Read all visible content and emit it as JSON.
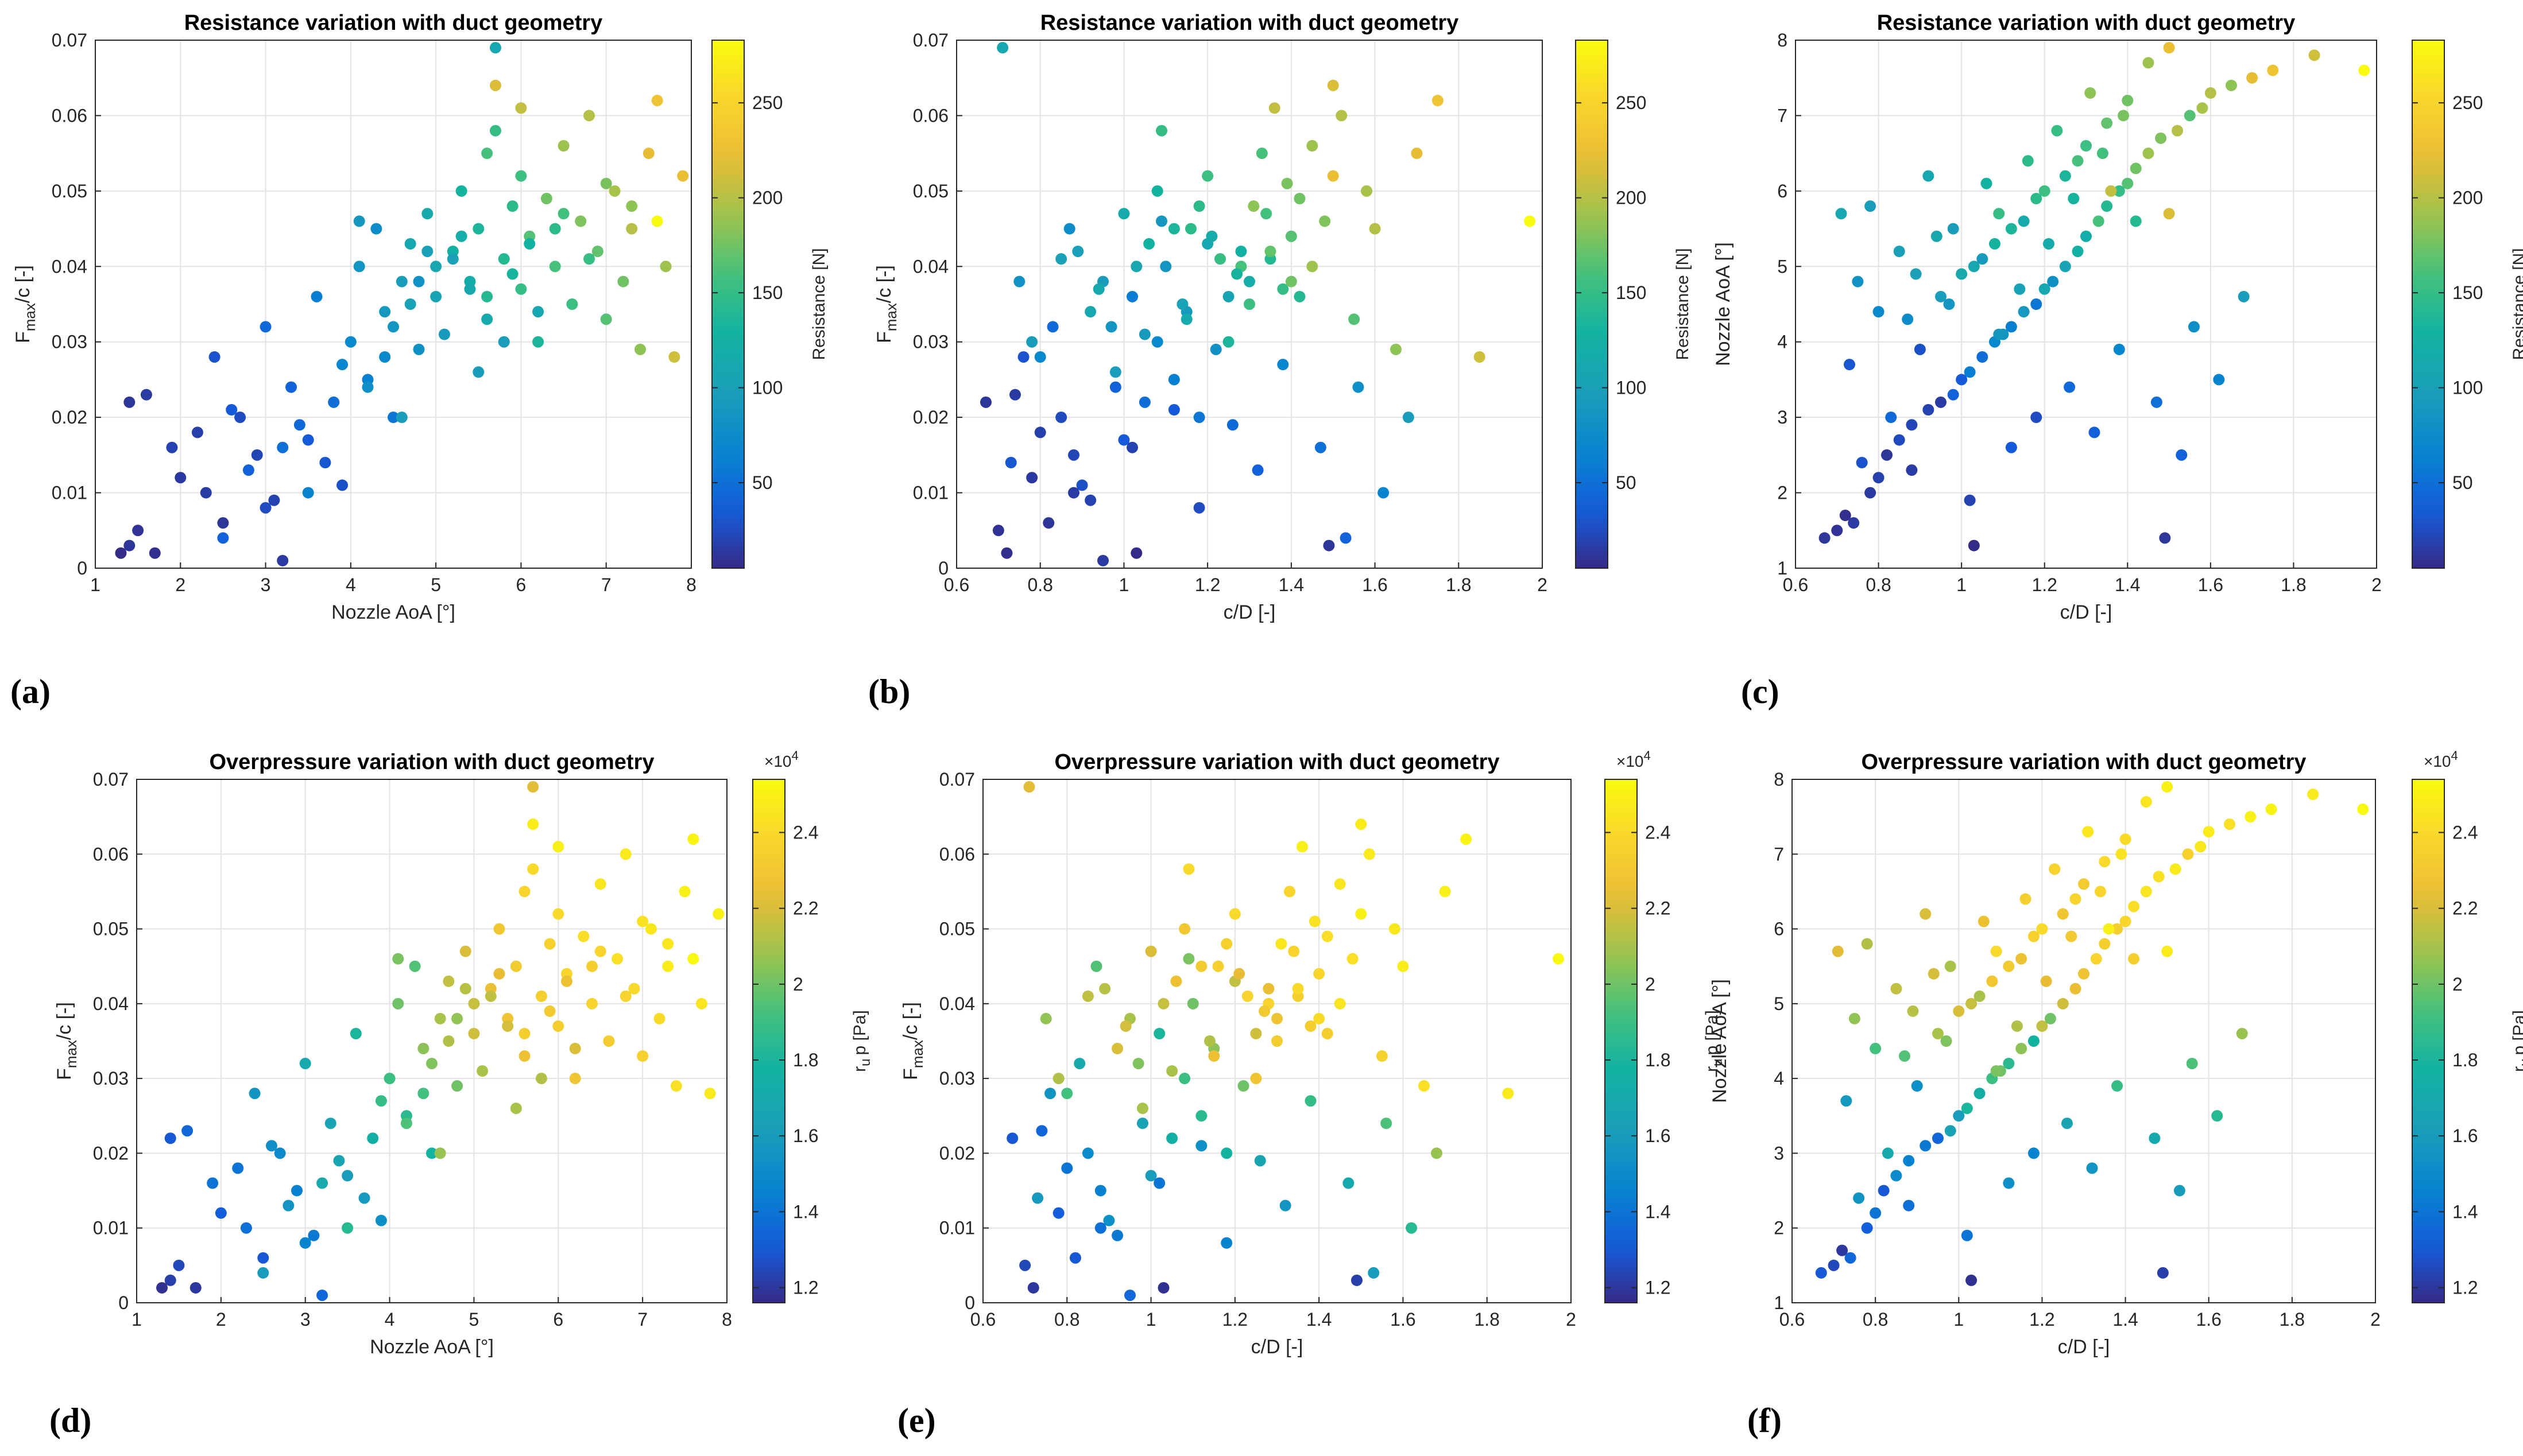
{
  "chart_data": [
    {
      "id": "a",
      "type": "scatter",
      "panel_label": "(a)",
      "title": "Resistance variation with duct geometry",
      "xlabel": "Nozzle AoA [°]",
      "ylabel_main": "F",
      "ylabel_sub": "max",
      "ylabel_rest": "/c [-]",
      "xlim": [
        1,
        8
      ],
      "ylim": [
        0,
        0.07
      ],
      "xticks": [
        1,
        2,
        3,
        4,
        5,
        6,
        7,
        8
      ],
      "yticks": [
        0,
        0.01,
        0.02,
        0.03,
        0.04,
        0.05,
        0.06,
        0.07
      ],
      "xtick_labels": [
        "1",
        "2",
        "3",
        "4",
        "5",
        "6",
        "7",
        "8"
      ],
      "ytick_labels": [
        "0",
        "0.01",
        "0.02",
        "0.03",
        "0.04",
        "0.05",
        "0.06",
        "0.07"
      ],
      "x_var": "aoa",
      "y_var": "fmax",
      "color_var": "res",
      "colorbar": {
        "label": "Resistance [N]",
        "range": [
          5,
          283
        ],
        "ticks": [
          50,
          100,
          150,
          200,
          250
        ],
        "tick_labels": [
          "50",
          "100",
          "150",
          "200",
          "250"
        ],
        "multiplier": ""
      }
    },
    {
      "id": "b",
      "type": "scatter",
      "panel_label": "(b)",
      "title": "Resistance variation with duct geometry",
      "xlabel": "c/D [-]",
      "ylabel_main": "F",
      "ylabel_sub": "max",
      "ylabel_rest": "/c [-]",
      "xlim": [
        0.6,
        2
      ],
      "ylim": [
        0,
        0.07
      ],
      "xticks": [
        0.6,
        0.8,
        1,
        1.2,
        1.4,
        1.6,
        1.8,
        2
      ],
      "yticks": [
        0,
        0.01,
        0.02,
        0.03,
        0.04,
        0.05,
        0.06,
        0.07
      ],
      "xtick_labels": [
        "0.6",
        "0.8",
        "1",
        "1.2",
        "1.4",
        "1.6",
        "1.8",
        "2"
      ],
      "ytick_labels": [
        "0",
        "0.01",
        "0.02",
        "0.03",
        "0.04",
        "0.05",
        "0.06",
        "0.07"
      ],
      "x_var": "cd",
      "y_var": "fmax",
      "color_var": "res",
      "colorbar": {
        "label": "Resistance [N]",
        "range": [
          5,
          283
        ],
        "ticks": [
          50,
          100,
          150,
          200,
          250
        ],
        "tick_labels": [
          "50",
          "100",
          "150",
          "200",
          "250"
        ],
        "multiplier": ""
      }
    },
    {
      "id": "c",
      "type": "scatter",
      "panel_label": "(c)",
      "title": "Resistance variation with duct geometry",
      "xlabel": "c/D [-]",
      "ylabel_main": "Nozzle AoA [°]",
      "ylabel_sub": "",
      "ylabel_rest": "",
      "xlim": [
        0.6,
        2
      ],
      "ylim": [
        1,
        8
      ],
      "xticks": [
        0.6,
        0.8,
        1,
        1.2,
        1.4,
        1.6,
        1.8,
        2
      ],
      "yticks": [
        1,
        2,
        3,
        4,
        5,
        6,
        7,
        8
      ],
      "xtick_labels": [
        "0.6",
        "0.8",
        "1",
        "1.2",
        "1.4",
        "1.6",
        "1.8",
        "2"
      ],
      "ytick_labels": [
        "1",
        "2",
        "3",
        "4",
        "5",
        "6",
        "7",
        "8"
      ],
      "x_var": "cd",
      "y_var": "aoa",
      "color_var": "res",
      "colorbar": {
        "label": "Resistance [N]",
        "range": [
          5,
          283
        ],
        "ticks": [
          50,
          100,
          150,
          200,
          250
        ],
        "tick_labels": [
          "50",
          "100",
          "150",
          "200",
          "250"
        ],
        "multiplier": ""
      }
    },
    {
      "id": "d",
      "type": "scatter",
      "panel_label": "(d)",
      "title": "Overpressure variation with duct geometry",
      "xlabel": "Nozzle AoA [°]",
      "ylabel_main": "F",
      "ylabel_sub": "max",
      "ylabel_rest": "/c [-]",
      "xlim": [
        1,
        8
      ],
      "ylim": [
        0,
        0.07
      ],
      "xticks": [
        1,
        2,
        3,
        4,
        5,
        6,
        7,
        8
      ],
      "yticks": [
        0,
        0.01,
        0.02,
        0.03,
        0.04,
        0.05,
        0.06,
        0.07
      ],
      "xtick_labels": [
        "1",
        "2",
        "3",
        "4",
        "5",
        "6",
        "7",
        "8"
      ],
      "ytick_labels": [
        "0",
        "0.01",
        "0.02",
        "0.03",
        "0.04",
        "0.05",
        "0.06",
        "0.07"
      ],
      "x_var": "aoa",
      "y_var": "fmax",
      "color_var": "op",
      "colorbar": {
        "label_main": "r",
        "label_sub": "u",
        "label_rest": "p [Pa]",
        "range": [
          11600,
          25400
        ],
        "ticks": [
          12000,
          14000,
          16000,
          18000,
          20000,
          22000,
          24000
        ],
        "tick_labels": [
          "1.2",
          "1.4",
          "1.6",
          "1.8",
          "2",
          "2.2",
          "2.4"
        ],
        "multiplier_base": "×10",
        "multiplier_exp": "4"
      }
    },
    {
      "id": "e",
      "type": "scatter",
      "panel_label": "(e)",
      "title": "Overpressure variation with duct geometry",
      "xlabel": "c/D [-]",
      "ylabel_main": "F",
      "ylabel_sub": "max",
      "ylabel_rest": "/c [-]",
      "xlim": [
        0.6,
        2
      ],
      "ylim": [
        0,
        0.07
      ],
      "xticks": [
        0.6,
        0.8,
        1,
        1.2,
        1.4,
        1.6,
        1.8,
        2
      ],
      "yticks": [
        0,
        0.01,
        0.02,
        0.03,
        0.04,
        0.05,
        0.06,
        0.07
      ],
      "xtick_labels": [
        "0.6",
        "0.8",
        "1",
        "1.2",
        "1.4",
        "1.6",
        "1.8",
        "2"
      ],
      "ytick_labels": [
        "0",
        "0.01",
        "0.02",
        "0.03",
        "0.04",
        "0.05",
        "0.06",
        "0.07"
      ],
      "x_var": "cd",
      "y_var": "fmax",
      "color_var": "op",
      "colorbar": {
        "label_main": "r",
        "label_sub": "u",
        "label_rest": "p [Pa]",
        "range": [
          11600,
          25400
        ],
        "ticks": [
          12000,
          14000,
          16000,
          18000,
          20000,
          22000,
          24000
        ],
        "tick_labels": [
          "1.2",
          "1.4",
          "1.6",
          "1.8",
          "2",
          "2.2",
          "2.4"
        ],
        "multiplier_base": "×10",
        "multiplier_exp": "4"
      }
    },
    {
      "id": "f",
      "type": "scatter",
      "panel_label": "(f)",
      "title": "Overpressure variation with duct geometry",
      "xlabel": "c/D [-]",
      "ylabel_main": "Nozzle AoA [°]",
      "ylabel_sub": "",
      "ylabel_rest": "",
      "xlim": [
        0.6,
        2
      ],
      "ylim": [
        1,
        8
      ],
      "xticks": [
        0.6,
        0.8,
        1,
        1.2,
        1.4,
        1.6,
        1.8,
        2
      ],
      "yticks": [
        1,
        2,
        3,
        4,
        5,
        6,
        7,
        8
      ],
      "xtick_labels": [
        "0.6",
        "0.8",
        "1",
        "1.2",
        "1.4",
        "1.6",
        "1.8",
        "2"
      ],
      "ytick_labels": [
        "1",
        "2",
        "3",
        "4",
        "5",
        "6",
        "7",
        "8"
      ],
      "x_var": "cd",
      "y_var": "aoa",
      "color_var": "op",
      "colorbar": {
        "label_main": "r",
        "label_sub": "u",
        "label_rest": "p [Pa]",
        "range": [
          11600,
          25400
        ],
        "ticks": [
          12000,
          14000,
          16000,
          18000,
          20000,
          22000,
          24000
        ],
        "tick_labels": [
          "1.2",
          "1.4",
          "1.6",
          "1.8",
          "2",
          "2.2",
          "2.4"
        ],
        "multiplier_base": "×10",
        "multiplier_exp": "4"
      }
    }
  ],
  "samples": [
    {
      "aoa": 1.4,
      "cd": 0.67,
      "fmax": 0.022,
      "res": 12,
      "op": 13000
    },
    {
      "aoa": 1.5,
      "cd": 0.7,
      "fmax": 0.005,
      "res": 10,
      "op": 12500
    },
    {
      "aoa": 1.7,
      "cd": 0.72,
      "fmax": 0.002,
      "res": 8,
      "op": 12000
    },
    {
      "aoa": 1.6,
      "cd": 0.74,
      "fmax": 0.023,
      "res": 15,
      "op": 13500
    },
    {
      "aoa": 2.0,
      "cd": 0.78,
      "fmax": 0.012,
      "res": 14,
      "op": 13200
    },
    {
      "aoa": 2.2,
      "cd": 0.8,
      "fmax": 0.018,
      "res": 18,
      "op": 14000
    },
    {
      "aoa": 2.4,
      "cd": 0.76,
      "fmax": 0.028,
      "res": 30,
      "op": 15500
    },
    {
      "aoa": 2.5,
      "cd": 0.82,
      "fmax": 0.006,
      "res": 12,
      "op": 13000
    },
    {
      "aoa": 2.7,
      "cd": 0.85,
      "fmax": 0.02,
      "res": 25,
      "op": 15000
    },
    {
      "aoa": 2.9,
      "cd": 0.88,
      "fmax": 0.015,
      "res": 22,
      "op": 14500
    },
    {
      "aoa": 3.0,
      "cd": 0.83,
      "fmax": 0.032,
      "res": 45,
      "op": 17000
    },
    {
      "aoa": 3.1,
      "cd": 0.92,
      "fmax": 0.009,
      "res": 20,
      "op": 14200
    },
    {
      "aoa": 3.2,
      "cd": 0.95,
      "fmax": 0.001,
      "res": 15,
      "op": 13500
    },
    {
      "aoa": 3.3,
      "cd": 0.98,
      "fmax": 0.024,
      "res": 40,
      "op": 16500
    },
    {
      "aoa": 3.5,
      "cd": 1.0,
      "fmax": 0.017,
      "res": 35,
      "op": 16000
    },
    {
      "aoa": 3.6,
      "cd": 1.02,
      "fmax": 0.036,
      "res": 60,
      "op": 18000
    },
    {
      "aoa": 3.8,
      "cd": 1.05,
      "fmax": 0.022,
      "res": 48,
      "op": 17500
    },
    {
      "aoa": 3.9,
      "cd": 0.9,
      "fmax": 0.011,
      "res": 28,
      "op": 15200
    },
    {
      "aoa": 4.0,
      "cd": 1.08,
      "fmax": 0.03,
      "res": 70,
      "op": 19000
    },
    {
      "aoa": 4.1,
      "cd": 1.1,
      "fmax": 0.04,
      "res": 85,
      "op": 20000
    },
    {
      "aoa": 4.2,
      "cd": 1.12,
      "fmax": 0.025,
      "res": 62,
      "op": 18500
    },
    {
      "aoa": 4.3,
      "cd": 0.87,
      "fmax": 0.045,
      "res": 75,
      "op": 19500
    },
    {
      "aoa": 4.4,
      "cd": 1.15,
      "fmax": 0.034,
      "res": 90,
      "op": 20500
    },
    {
      "aoa": 4.5,
      "cd": 1.18,
      "fmax": 0.02,
      "res": 55,
      "op": 17800
    },
    {
      "aoa": 4.6,
      "cd": 0.95,
      "fmax": 0.038,
      "res": 95,
      "op": 21000
    },
    {
      "aoa": 4.7,
      "cd": 1.2,
      "fmax": 0.043,
      "res": 110,
      "op": 21500
    },
    {
      "aoa": 4.8,
      "cd": 1.22,
      "fmax": 0.029,
      "res": 80,
      "op": 20000
    },
    {
      "aoa": 4.9,
      "cd": 1.0,
      "fmax": 0.047,
      "res": 115,
      "op": 22000
    },
    {
      "aoa": 5.0,
      "cd": 1.25,
      "fmax": 0.036,
      "res": 105,
      "op": 21800
    },
    {
      "aoa": 5.1,
      "cd": 1.05,
      "fmax": 0.031,
      "res": 92,
      "op": 21000
    },
    {
      "aoa": 5.2,
      "cd": 1.28,
      "fmax": 0.042,
      "res": 125,
      "op": 22500
    },
    {
      "aoa": 5.3,
      "cd": 1.08,
      "fmax": 0.05,
      "res": 130,
      "op": 23000
    },
    {
      "aoa": 5.4,
      "cd": 1.3,
      "fmax": 0.038,
      "res": 120,
      "op": 22800
    },
    {
      "aoa": 5.5,
      "cd": 1.12,
      "fmax": 0.045,
      "res": 135,
      "op": 23200
    },
    {
      "aoa": 5.6,
      "cd": 1.33,
      "fmax": 0.055,
      "res": 160,
      "op": 23800
    },
    {
      "aoa": 5.6,
      "cd": 1.15,
      "fmax": 0.033,
      "res": 115,
      "op": 22600
    },
    {
      "aoa": 5.7,
      "cd": 1.5,
      "fmax": 0.064,
      "res": 215,
      "op": 24800
    },
    {
      "aoa": 5.7,
      "cd": 0.71,
      "fmax": 0.069,
      "res": 110,
      "op": 22200
    },
    {
      "aoa": 5.8,
      "cd": 1.35,
      "fmax": 0.041,
      "res": 140,
      "op": 23500
    },
    {
      "aoa": 5.9,
      "cd": 1.18,
      "fmax": 0.048,
      "res": 145,
      "op": 23600
    },
    {
      "aoa": 6.0,
      "cd": 1.38,
      "fmax": 0.037,
      "res": 150,
      "op": 23400
    },
    {
      "aoa": 6.0,
      "cd": 1.2,
      "fmax": 0.052,
      "res": 155,
      "op": 24000
    },
    {
      "aoa": 6.1,
      "cd": 1.4,
      "fmax": 0.044,
      "res": 165,
      "op": 23900
    },
    {
      "aoa": 6.2,
      "cd": 1.25,
      "fmax": 0.03,
      "res": 135,
      "op": 22900
    },
    {
      "aoa": 6.3,
      "cd": 1.42,
      "fmax": 0.049,
      "res": 175,
      "op": 24200
    },
    {
      "aoa": 6.4,
      "cd": 1.28,
      "fmax": 0.04,
      "res": 160,
      "op": 23700
    },
    {
      "aoa": 6.5,
      "cd": 1.45,
      "fmax": 0.056,
      "res": 190,
      "op": 24500
    },
    {
      "aoa": 6.6,
      "cd": 1.3,
      "fmax": 0.035,
      "res": 155,
      "op": 23300
    },
    {
      "aoa": 6.7,
      "cd": 1.48,
      "fmax": 0.046,
      "res": 180,
      "op": 24300
    },
    {
      "aoa": 6.8,
      "cd": 1.52,
      "fmax": 0.06,
      "res": 200,
      "op": 24700
    },
    {
      "aoa": 6.9,
      "cd": 1.35,
      "fmax": 0.042,
      "res": 170,
      "op": 24000
    },
    {
      "aoa": 7.0,
      "cd": 1.55,
      "fmax": 0.033,
      "res": 165,
      "op": 23600
    },
    {
      "aoa": 7.1,
      "cd": 1.58,
      "fmax": 0.05,
      "res": 195,
      "op": 24600
    },
    {
      "aoa": 7.2,
      "cd": 1.4,
      "fmax": 0.038,
      "res": 175,
      "op": 24100
    },
    {
      "aoa": 7.3,
      "cd": 1.6,
      "fmax": 0.045,
      "res": 200,
      "op": 24800
    },
    {
      "aoa": 7.4,
      "cd": 1.65,
      "fmax": 0.029,
      "res": 185,
      "op": 24300
    },
    {
      "aoa": 7.5,
      "cd": 1.7,
      "fmax": 0.055,
      "res": 220,
      "op": 25000
    },
    {
      "aoa": 7.6,
      "cd": 1.75,
      "fmax": 0.062,
      "res": 230,
      "op": 25100
    },
    {
      "aoa": 7.7,
      "cd": 1.45,
      "fmax": 0.04,
      "res": 190,
      "op": 24500
    },
    {
      "aoa": 7.8,
      "cd": 1.85,
      "fmax": 0.028,
      "res": 210,
      "op": 24700
    },
    {
      "aoa": 7.9,
      "cd": 1.5,
      "fmax": 0.052,
      "res": 225,
      "op": 25000
    },
    {
      "aoa": 7.6,
      "cd": 1.97,
      "fmax": 0.046,
      "res": 283,
      "op": 25300
    },
    {
      "aoa": 5.8,
      "cd": 0.78,
      "fmax": 0.03,
      "res": 95,
      "op": 21200
    },
    {
      "aoa": 5.2,
      "cd": 0.85,
      "fmax": 0.041,
      "res": 100,
      "op": 21500
    },
    {
      "aoa": 4.8,
      "cd": 0.75,
      "fmax": 0.038,
      "res": 82,
      "op": 20600
    },
    {
      "aoa": 6.2,
      "cd": 0.92,
      "fmax": 0.034,
      "res": 110,
      "op": 22000
    },
    {
      "aoa": 5.5,
      "cd": 0.98,
      "fmax": 0.026,
      "res": 95,
      "op": 21000
    },
    {
      "aoa": 4.4,
      "cd": 0.8,
      "fmax": 0.028,
      "res": 70,
      "op": 19200
    },
    {
      "aoa": 3.7,
      "cd": 0.73,
      "fmax": 0.014,
      "res": 32,
      "op": 15800
    },
    {
      "aoa": 2.3,
      "cd": 0.88,
      "fmax": 0.01,
      "res": 16,
      "op": 13800
    },
    {
      "aoa": 1.9,
      "cd": 1.02,
      "fmax": 0.016,
      "res": 20,
      "op": 14000
    },
    {
      "aoa": 2.6,
      "cd": 1.12,
      "fmax": 0.021,
      "res": 35,
      "op": 15300
    },
    {
      "aoa": 3.0,
      "cd": 1.18,
      "fmax": 0.008,
      "res": 26,
      "op": 14600
    },
    {
      "aoa": 3.4,
      "cd": 1.26,
      "fmax": 0.019,
      "res": 45,
      "op": 16700
    },
    {
      "aoa": 2.8,
      "cd": 1.32,
      "fmax": 0.013,
      "res": 38,
      "op": 15600
    },
    {
      "aoa": 3.9,
      "cd": 1.38,
      "fmax": 0.027,
      "res": 68,
      "op": 18800
    },
    {
      "aoa": 3.2,
      "cd": 1.47,
      "fmax": 0.016,
      "res": 50,
      "op": 17000
    },
    {
      "aoa": 2.5,
      "cd": 1.53,
      "fmax": 0.004,
      "res": 40,
      "op": 16000
    },
    {
      "aoa": 4.2,
      "cd": 1.56,
      "fmax": 0.024,
      "res": 78,
      "op": 19400
    },
    {
      "aoa": 3.5,
      "cd": 1.62,
      "fmax": 0.01,
      "res": 65,
      "op": 18400
    },
    {
      "aoa": 4.6,
      "cd": 1.68,
      "fmax": 0.02,
      "res": 95,
      "op": 20700
    },
    {
      "aoa": 1.4,
      "cd": 1.49,
      "fmax": 0.003,
      "res": 12,
      "op": 12200
    },
    {
      "aoa": 1.3,
      "cd": 1.03,
      "fmax": 0.002,
      "res": 5,
      "op": 11800
    },
    {
      "aoa": 4.1,
      "cd": 1.09,
      "fmax": 0.046,
      "res": 88,
      "op": 20200
    },
    {
      "aoa": 4.7,
      "cd": 1.14,
      "fmax": 0.035,
      "res": 102,
      "op": 21200
    },
    {
      "aoa": 5.3,
      "cd": 1.21,
      "fmax": 0.044,
      "res": 118,
      "op": 22300
    },
    {
      "aoa": 5.9,
      "cd": 1.27,
      "fmax": 0.039,
      "res": 132,
      "op": 23100
    },
    {
      "aoa": 6.5,
      "cd": 1.34,
      "fmax": 0.047,
      "res": 158,
      "op": 23800
    },
    {
      "aoa": 7.0,
      "cd": 1.39,
      "fmax": 0.051,
      "res": 178,
      "op": 24400
    },
    {
      "aoa": 6.1,
      "cd": 1.06,
      "fmax": 0.043,
      "res": 128,
      "op": 22700
    },
    {
      "aoa": 5.0,
      "cd": 1.03,
      "fmax": 0.04,
      "res": 108,
      "op": 21600
    },
    {
      "aoa": 4.5,
      "cd": 0.97,
      "fmax": 0.032,
      "res": 86,
      "op": 20300
    },
    {
      "aoa": 5.6,
      "cd": 1.42,
      "fmax": 0.036,
      "res": 140,
      "op": 23400
    },
    {
      "aoa": 6.4,
      "cd": 1.16,
      "fmax": 0.045,
      "res": 145,
      "op": 23500
    },
    {
      "aoa": 6.8,
      "cd": 1.23,
      "fmax": 0.041,
      "res": 152,
      "op": 23700
    },
    {
      "aoa": 7.3,
      "cd": 1.31,
      "fmax": 0.048,
      "res": 185,
      "op": 24600
    },
    {
      "aoa": 5.7,
      "cd": 1.09,
      "fmax": 0.058,
      "res": 150,
      "op": 24000
    },
    {
      "aoa": 6.0,
      "cd": 1.36,
      "fmax": 0.061,
      "res": 205,
      "op": 24900
    },
    {
      "aoa": 5.4,
      "cd": 0.94,
      "fmax": 0.037,
      "res": 112,
      "op": 21900
    },
    {
      "aoa": 4.9,
      "cd": 0.89,
      "fmax": 0.042,
      "res": 98,
      "op": 21300
    }
  ]
}
